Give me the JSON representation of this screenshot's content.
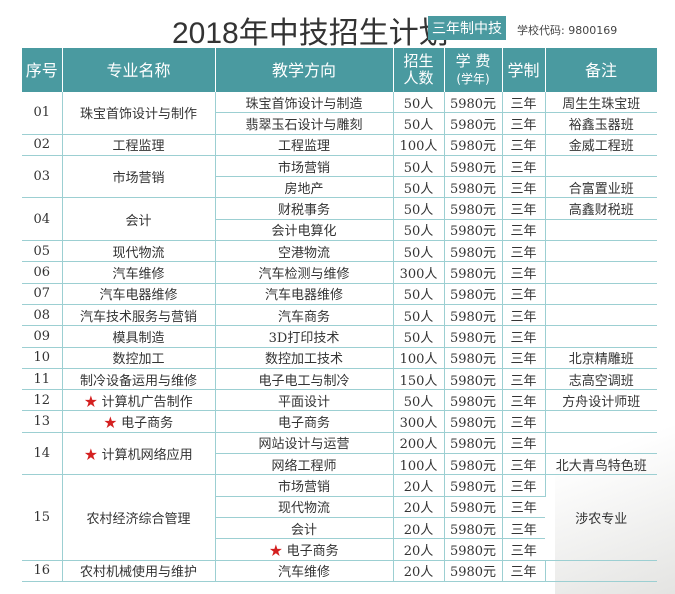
{
  "header": {
    "title": "2018年中技招生计划",
    "badge": "三年制中技",
    "school_code": "学校代码: 9800169"
  },
  "columns": {
    "no": "序号",
    "major": "专业名称",
    "direction": "教学方向",
    "enroll_1": "招生",
    "enroll_2": "人数",
    "fee_1": "学 费",
    "fee_2": "(学年)",
    "duration": "学制",
    "remark": "备注"
  },
  "colors": {
    "header_bg": "#4a9aa0",
    "star": "#d42020"
  },
  "majors": [
    {
      "no": "01",
      "name": "珠宝首饰设计与制作",
      "star": false,
      "rows": [
        [
          "珠宝首饰设计与制造",
          "50人",
          "5980元",
          "三年",
          "周生生珠宝班"
        ],
        [
          "翡翠玉石设计与雕刻",
          "50人",
          "5980元",
          "三年",
          "裕鑫玉器班"
        ]
      ]
    },
    {
      "no": "02",
      "name": "工程监理",
      "star": false,
      "rows": [
        [
          "工程监理",
          "100人",
          "5980元",
          "三年",
          "金威工程班"
        ]
      ]
    },
    {
      "no": "03",
      "name": "市场营销",
      "star": false,
      "rows": [
        [
          "市场营销",
          "50人",
          "5980元",
          "三年",
          ""
        ],
        [
          "房地产",
          "50人",
          "5980元",
          "三年",
          "合富置业班"
        ]
      ]
    },
    {
      "no": "04",
      "name": "会计",
      "star": false,
      "rows": [
        [
          "财税事务",
          "50人",
          "5980元",
          "三年",
          "高鑫财税班"
        ],
        [
          "会计电算化",
          "50人",
          "5980元",
          "三年",
          ""
        ]
      ]
    },
    {
      "no": "05",
      "name": "现代物流",
      "star": false,
      "rows": [
        [
          "空港物流",
          "50人",
          "5980元",
          "三年",
          ""
        ]
      ]
    },
    {
      "no": "06",
      "name": "汽车维修",
      "star": false,
      "rows": [
        [
          "汽车检测与维修",
          "300人",
          "5980元",
          "三年",
          ""
        ]
      ]
    },
    {
      "no": "07",
      "name": "汽车电器维修",
      "star": false,
      "rows": [
        [
          "汽车电器维修",
          "50人",
          "5980元",
          "三年",
          ""
        ]
      ]
    },
    {
      "no": "08",
      "name": "汽车技术服务与营销",
      "star": false,
      "rows": [
        [
          "汽车商务",
          "50人",
          "5980元",
          "三年",
          ""
        ]
      ]
    },
    {
      "no": "09",
      "name": "模具制造",
      "star": false,
      "rows": [
        [
          "3D打印技术",
          "50人",
          "5980元",
          "三年",
          ""
        ]
      ]
    },
    {
      "no": "10",
      "name": "数控加工",
      "star": false,
      "rows": [
        [
          "数控加工技术",
          "100人",
          "5980元",
          "三年",
          "北京精雕班"
        ]
      ]
    },
    {
      "no": "11",
      "name": "制冷设备运用与维修",
      "star": false,
      "rows": [
        [
          "电子电工与制冷",
          "150人",
          "5980元",
          "三年",
          "志高空调班"
        ]
      ]
    },
    {
      "no": "12",
      "name": "计算机广告制作",
      "star": true,
      "rows": [
        [
          "平面设计",
          "50人",
          "5980元",
          "三年",
          "方舟设计师班"
        ]
      ]
    },
    {
      "no": "13",
      "name": "电子商务",
      "star": true,
      "rows": [
        [
          "电子商务",
          "300人",
          "5980元",
          "三年",
          ""
        ]
      ]
    },
    {
      "no": "14",
      "name": "计算机网络应用",
      "star": true,
      "rows": [
        [
          "网站设计与运营",
          "200人",
          "5980元",
          "三年",
          ""
        ],
        [
          "网络工程师",
          "100人",
          "5980元",
          "三年",
          "北大青鸟特色班"
        ]
      ]
    },
    {
      "no": "15",
      "name": "农村经济综合管理",
      "star": false,
      "merged_remark": "涉农专业",
      "rows": [
        [
          "市场营销",
          "20人",
          "5980元",
          "三年"
        ],
        [
          "现代物流",
          "20人",
          "5980元",
          "三年"
        ],
        [
          "会计",
          "20人",
          "5980元",
          "三年"
        ],
        [
          "电子商务",
          "20人",
          "5980元",
          "三年"
        ]
      ],
      "star_direction_index": 3
    },
    {
      "no": "16",
      "name": "农村机械使用与维护",
      "star": false,
      "rows": [
        [
          "汽车维修",
          "20人",
          "5980元",
          "三年",
          ""
        ]
      ]
    }
  ]
}
